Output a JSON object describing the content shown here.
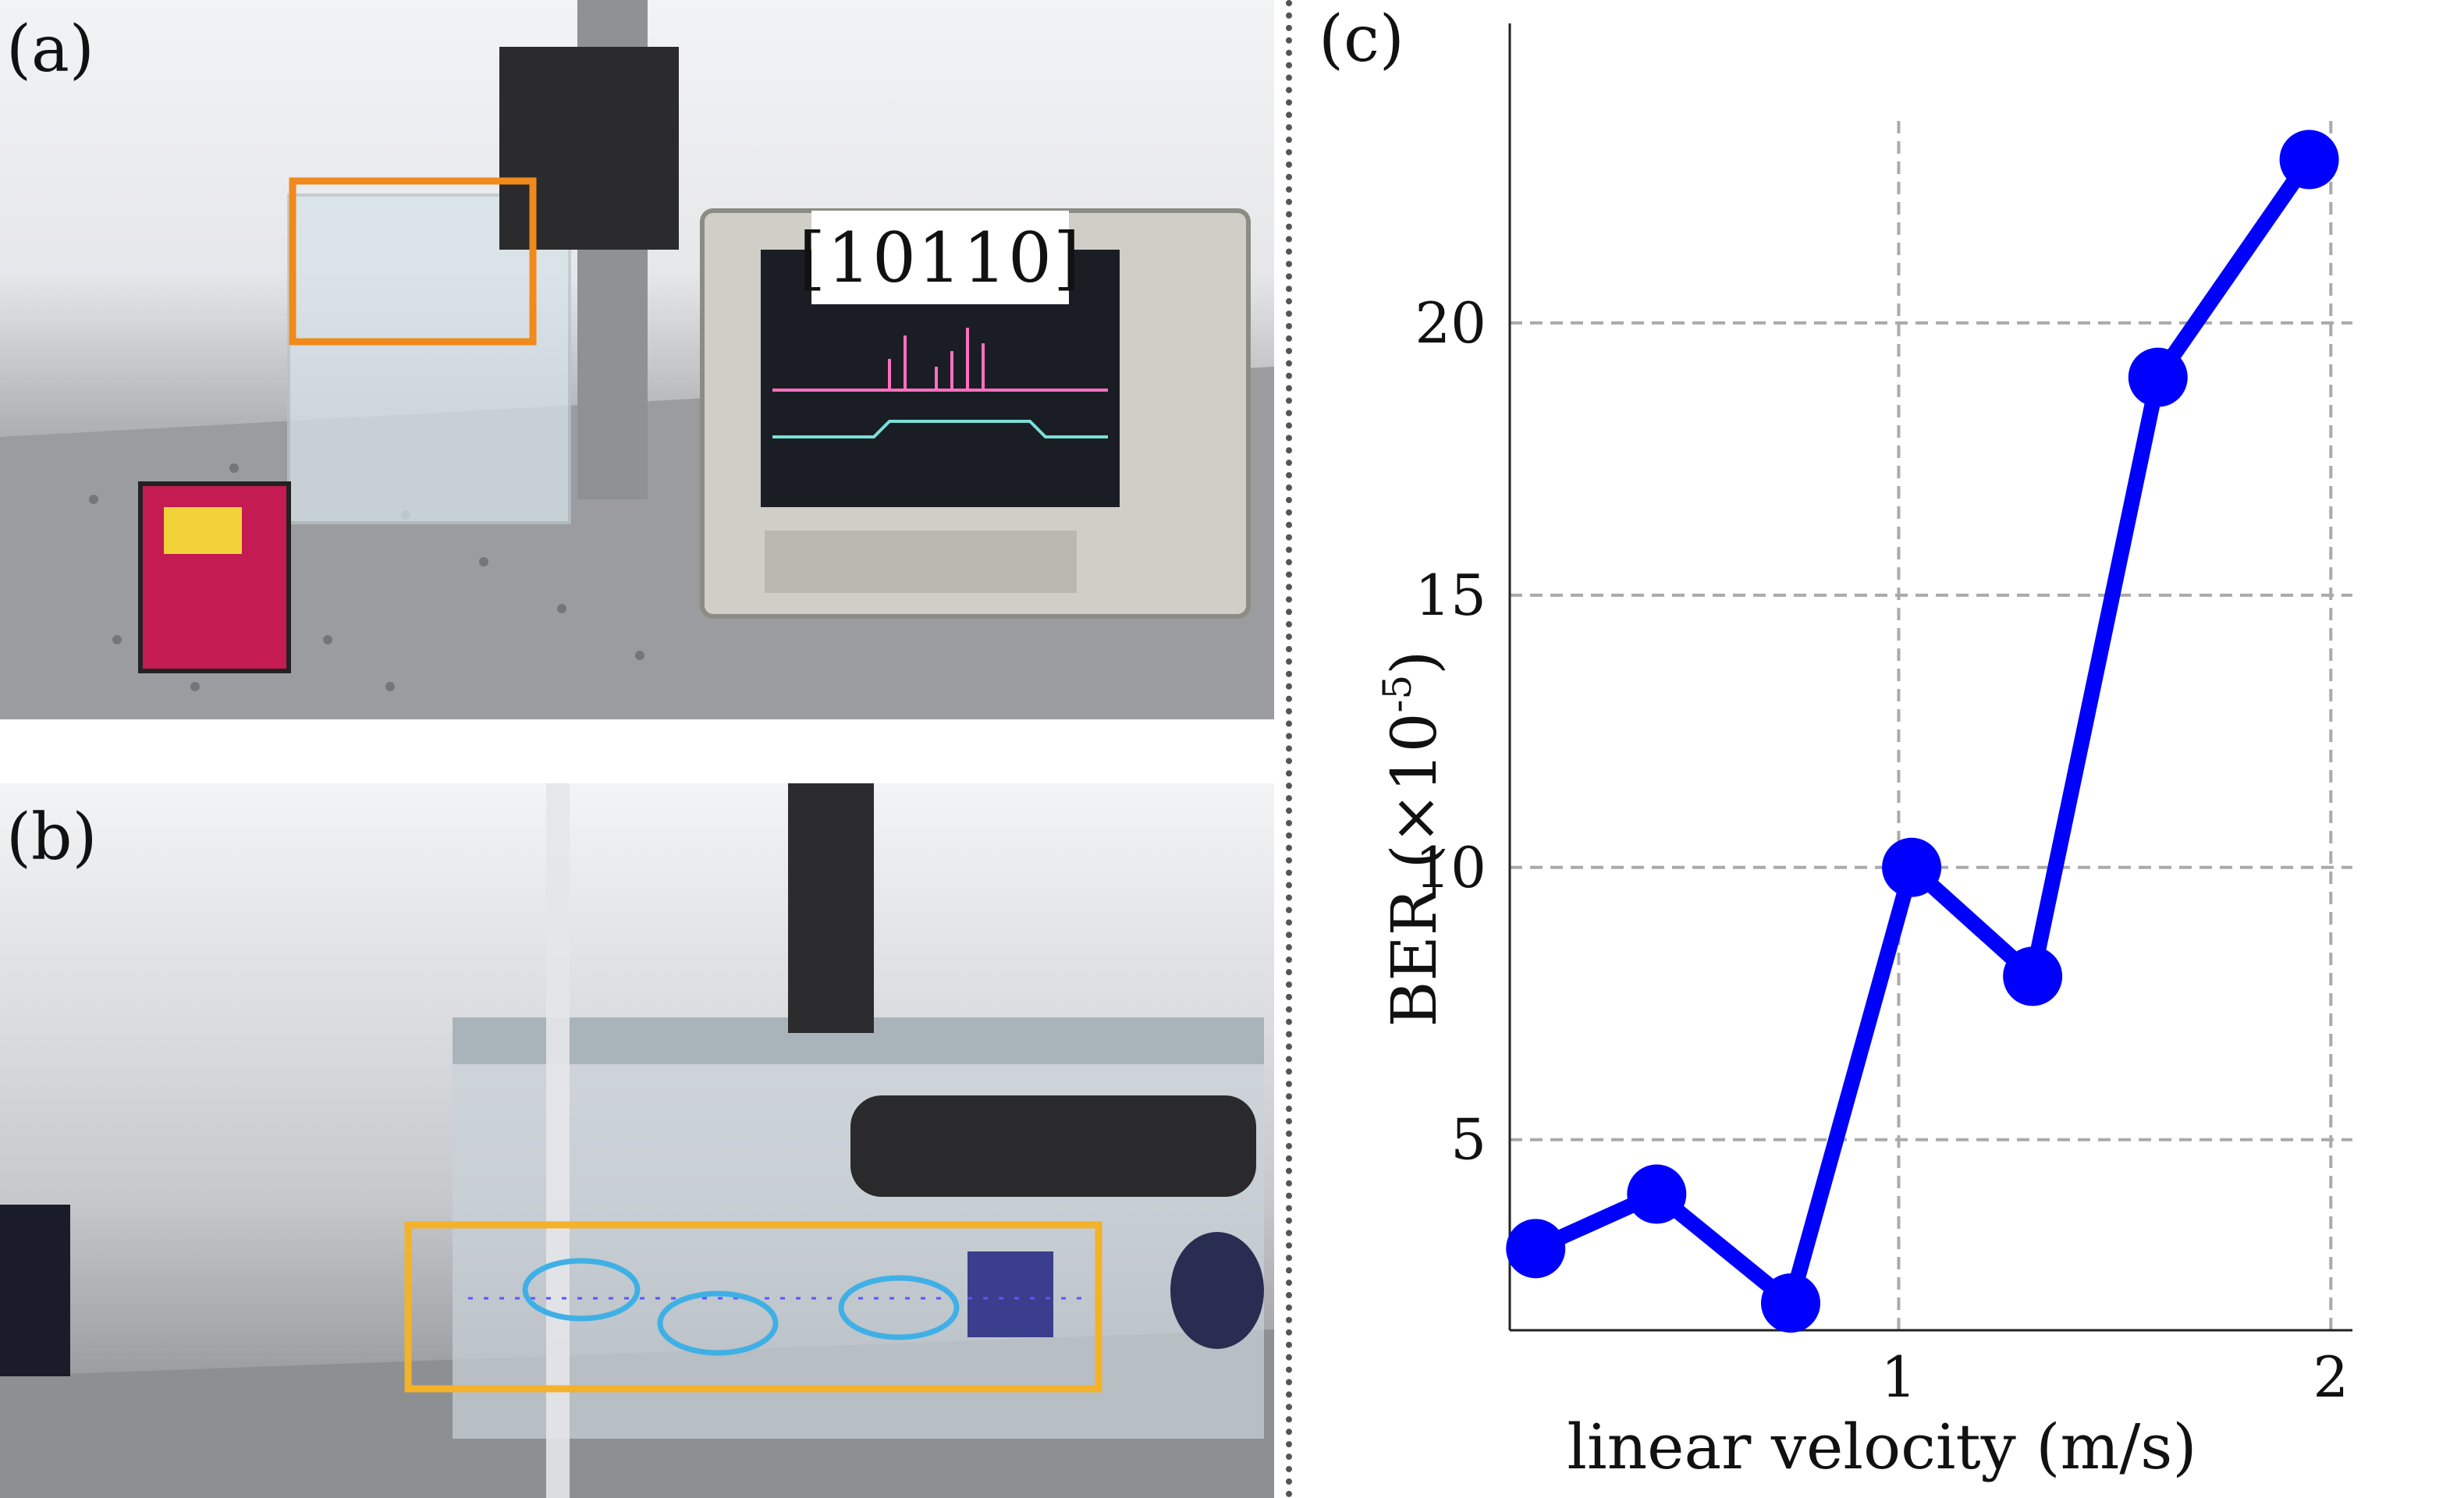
{
  "panels": {
    "a": {
      "label": "(a)",
      "scope_label": "[10110]"
    },
    "b": {
      "label": "(b)"
    },
    "c": {
      "label": "(c)"
    }
  },
  "colors": {
    "series": "#0000ff",
    "highlight_box_a": "#f08a1c",
    "highlight_box_b": "#f3b22a",
    "ellipse": "#3fb0e6",
    "grid": "#aaaaaa"
  },
  "chart_data": {
    "type": "line",
    "title": "",
    "xlabel": "linear velocity (m/s)",
    "ylabel": "BER (×10",
    "ylabel_exponent": "-5",
    "ylabel_suffix": ")",
    "xlim": [
      0.1,
      2.05
    ],
    "ylim": [
      1.5,
      25.5
    ],
    "xticks": [
      1,
      2
    ],
    "xtick_labels": [
      "1",
      "2"
    ],
    "yticks": [
      5,
      10,
      15,
      20
    ],
    "ytick_labels": [
      "5",
      "10",
      "15",
      "20"
    ],
    "grid": true,
    "series": [
      {
        "x": [
          0.16,
          0.44,
          0.75,
          1.03,
          1.31,
          1.6,
          1.95
        ],
        "y": [
          3.0,
          4.0,
          2.0,
          10.0,
          8.0,
          19.0,
          23.0
        ]
      }
    ]
  }
}
